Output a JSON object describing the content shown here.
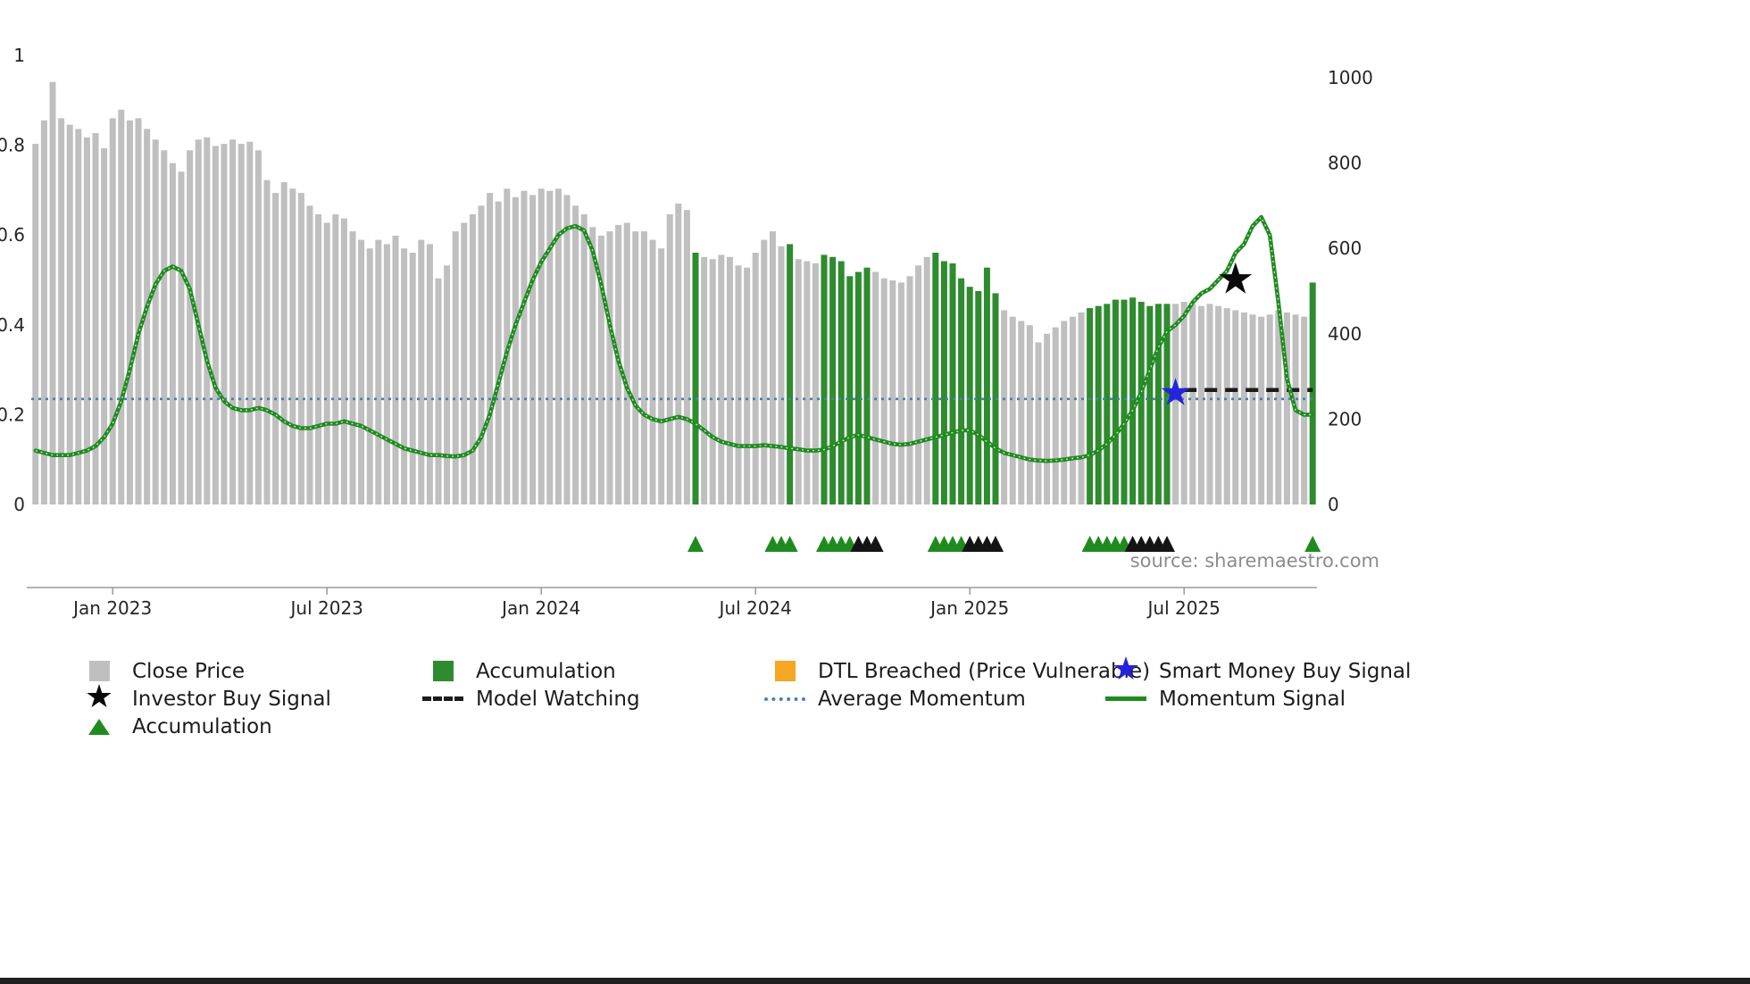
{
  "source_text": "source: sharemaestro.com",
  "chart_data": {
    "type": "bar",
    "subtype": "price-bars-with-momentum-line",
    "frequency": "weekly",
    "n_points": 150,
    "price": {
      "name": "Close Price",
      "axis": "right",
      "values": [
        845,
        900,
        990,
        905,
        890,
        880,
        860,
        870,
        835,
        905,
        925,
        900,
        905,
        880,
        855,
        830,
        800,
        780,
        830,
        855,
        860,
        840,
        845,
        855,
        845,
        850,
        830,
        760,
        730,
        755,
        740,
        730,
        700,
        680,
        660,
        680,
        670,
        640,
        620,
        600,
        620,
        610,
        630,
        600,
        590,
        620,
        610,
        530,
        560,
        640,
        660,
        680,
        700,
        730,
        710,
        740,
        720,
        735,
        725,
        740,
        735,
        740,
        725,
        700,
        680,
        650,
        630,
        640,
        655,
        660,
        640,
        640,
        620,
        600,
        680,
        705,
        690,
        590,
        580,
        575,
        585,
        580,
        560,
        555,
        590,
        620,
        640,
        605,
        610,
        575,
        570,
        565,
        585,
        580,
        570,
        535,
        545,
        555,
        545,
        530,
        525,
        520,
        535,
        560,
        580,
        590,
        570,
        565,
        530,
        510,
        500,
        555,
        495,
        455,
        440,
        430,
        420,
        380,
        400,
        415,
        430,
        440,
        450,
        460,
        465,
        470,
        480,
        480,
        485,
        475,
        465,
        470,
        470,
        470,
        475,
        470,
        465,
        470,
        465,
        460,
        455,
        450,
        445,
        440,
        445,
        455,
        450,
        445,
        440,
        520
      ]
    },
    "accumulation_indices": [
      77,
      88,
      92,
      93,
      94,
      95,
      96,
      97,
      105,
      106,
      107,
      108,
      109,
      110,
      111,
      112,
      123,
      124,
      125,
      126,
      127,
      128,
      129,
      130,
      131,
      132,
      149
    ],
    "momentum": {
      "name": "Momentum Signal",
      "axis": "left",
      "values": [
        0.12,
        0.115,
        0.11,
        0.11,
        0.11,
        0.115,
        0.12,
        0.13,
        0.15,
        0.18,
        0.23,
        0.3,
        0.38,
        0.44,
        0.49,
        0.52,
        0.53,
        0.52,
        0.48,
        0.4,
        0.32,
        0.26,
        0.23,
        0.215,
        0.21,
        0.21,
        0.215,
        0.21,
        0.2,
        0.185,
        0.175,
        0.17,
        0.17,
        0.175,
        0.18,
        0.18,
        0.185,
        0.18,
        0.175,
        0.165,
        0.155,
        0.145,
        0.135,
        0.125,
        0.12,
        0.115,
        0.11,
        0.11,
        0.108,
        0.107,
        0.11,
        0.12,
        0.15,
        0.2,
        0.27,
        0.34,
        0.4,
        0.45,
        0.5,
        0.54,
        0.57,
        0.6,
        0.615,
        0.62,
        0.61,
        0.565,
        0.49,
        0.4,
        0.32,
        0.26,
        0.22,
        0.2,
        0.19,
        0.185,
        0.19,
        0.195,
        0.19,
        0.18,
        0.165,
        0.15,
        0.14,
        0.135,
        0.13,
        0.13,
        0.13,
        0.132,
        0.13,
        0.128,
        0.125,
        0.123,
        0.12,
        0.12,
        0.122,
        0.13,
        0.14,
        0.15,
        0.155,
        0.15,
        0.145,
        0.14,
        0.135,
        0.133,
        0.135,
        0.14,
        0.145,
        0.15,
        0.155,
        0.16,
        0.165,
        0.165,
        0.155,
        0.14,
        0.125,
        0.115,
        0.11,
        0.105,
        0.1,
        0.098,
        0.097,
        0.098,
        0.1,
        0.103,
        0.105,
        0.11,
        0.12,
        0.135,
        0.155,
        0.18,
        0.21,
        0.25,
        0.3,
        0.35,
        0.385,
        0.4,
        0.42,
        0.45,
        0.47,
        0.48,
        0.5,
        0.52,
        0.56,
        0.58,
        0.62,
        0.64,
        0.6,
        0.45,
        0.28,
        0.21,
        0.2,
        0.2
      ]
    },
    "average_momentum": 0.235,
    "model_watching": [
      {
        "from": 134,
        "to": 149,
        "value": 0.255
      }
    ],
    "markers": {
      "investor_buy_signal": {
        "index": 140,
        "value": 0.5
      },
      "smart_money_buy_signal": {
        "index": 133,
        "value": 0.25
      }
    },
    "triangles": [
      {
        "i": 77,
        "c": "green"
      },
      {
        "i": 86,
        "c": "green"
      },
      {
        "i": 87,
        "c": "green"
      },
      {
        "i": 88,
        "c": "green"
      },
      {
        "i": 92,
        "c": "green"
      },
      {
        "i": 93,
        "c": "green"
      },
      {
        "i": 94,
        "c": "green"
      },
      {
        "i": 95,
        "c": "green"
      },
      {
        "i": 96,
        "c": "black"
      },
      {
        "i": 97,
        "c": "black"
      },
      {
        "i": 98,
        "c": "black"
      },
      {
        "i": 105,
        "c": "green"
      },
      {
        "i": 106,
        "c": "green"
      },
      {
        "i": 107,
        "c": "green"
      },
      {
        "i": 108,
        "c": "green"
      },
      {
        "i": 109,
        "c": "black"
      },
      {
        "i": 110,
        "c": "black"
      },
      {
        "i": 111,
        "c": "black"
      },
      {
        "i": 112,
        "c": "black"
      },
      {
        "i": 123,
        "c": "green"
      },
      {
        "i": 124,
        "c": "green"
      },
      {
        "i": 125,
        "c": "green"
      },
      {
        "i": 126,
        "c": "green"
      },
      {
        "i": 127,
        "c": "green"
      },
      {
        "i": 128,
        "c": "black"
      },
      {
        "i": 129,
        "c": "black"
      },
      {
        "i": 130,
        "c": "black"
      },
      {
        "i": 131,
        "c": "black"
      },
      {
        "i": 132,
        "c": "black"
      },
      {
        "i": 149,
        "c": "green"
      }
    ],
    "colors": {
      "close": "#bfbfbf",
      "accumulation": "#2e8b2e",
      "momentum": "#1f8b1f",
      "average": "#4a7fb5",
      "model": "#1c1c1c",
      "investor_star": "#0a0a0a",
      "smart_star": "#2424dd",
      "dtl": "#f5a623",
      "triangle_green": "#1f8b1f",
      "triangle_black": "#141414"
    },
    "left_axis": {
      "min": 0,
      "max": 1,
      "ticks": [
        0,
        0.2,
        0.4,
        0.6,
        0.8,
        1
      ]
    },
    "right_axis": {
      "min": 0,
      "max": 1000,
      "ticks": [
        0,
        200,
        400,
        600,
        800,
        1000
      ]
    },
    "x_ticks": [
      {
        "index": 9,
        "label": "Jan 2023"
      },
      {
        "index": 34,
        "label": "Jul 2023"
      },
      {
        "index": 59,
        "label": "Jan 2024"
      },
      {
        "index": 84,
        "label": "Jul 2024"
      },
      {
        "index": 109,
        "label": "Jan 2025"
      },
      {
        "index": 134,
        "label": "Jul 2025"
      }
    ],
    "title": "",
    "xlabel": "",
    "ylabel_left": "",
    "ylabel_right": "",
    "grid": false,
    "legend_position": "bottom"
  },
  "legend": {
    "close_price": "Close Price",
    "accumulation_bar": "Accumulation",
    "dtl_breached": "DTL Breached (Price Vulnerable)",
    "smart_money": "Smart Money Buy Signal",
    "investor_buy": "Investor Buy Signal",
    "model_watching": "Model Watching",
    "average_momentum": "Average Momentum",
    "momentum_signal": "Momentum Signal",
    "accumulation_triangle": "Accumulation"
  }
}
